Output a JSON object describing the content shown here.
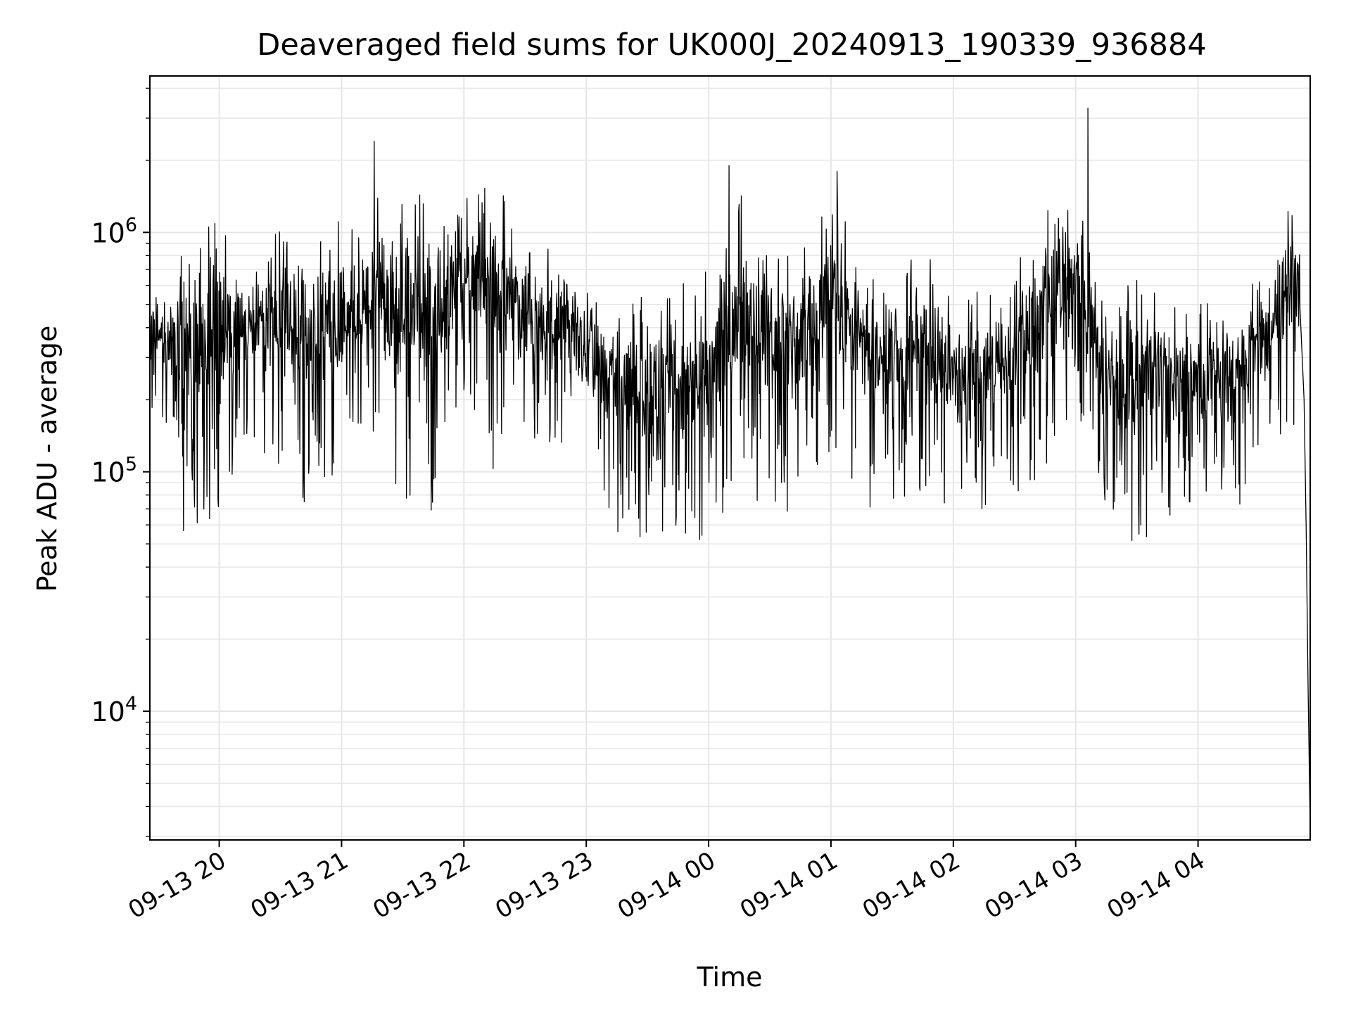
{
  "chart_data": {
    "type": "line",
    "title": "Deaveraged field sums for UK000J_20240913_190339_936884",
    "xlabel": "Time",
    "ylabel": "Peak ADU - average",
    "x_scale": "time",
    "y_scale": "log",
    "xlim": [
      "2024-09-13 19:26",
      "2024-09-14 04:55"
    ],
    "ylim": [
      2900,
      4500000
    ],
    "x_ticks": [
      {
        "time": "2024-09-13 20:00",
        "label": "09-13 20"
      },
      {
        "time": "2024-09-13 21:00",
        "label": "09-13 21"
      },
      {
        "time": "2024-09-13 22:00",
        "label": "09-13 22"
      },
      {
        "time": "2024-09-13 23:00",
        "label": "09-13 23"
      },
      {
        "time": "2024-09-14 00:00",
        "label": "09-14 00"
      },
      {
        "time": "2024-09-14 01:00",
        "label": "09-14 01"
      },
      {
        "time": "2024-09-14 02:00",
        "label": "09-14 02"
      },
      {
        "time": "2024-09-14 03:00",
        "label": "09-14 03"
      },
      {
        "time": "2024-09-14 04:00",
        "label": "09-14 04"
      }
    ],
    "y_ticks": [
      {
        "value": 10000,
        "base": "10",
        "exp": "4"
      },
      {
        "value": 100000,
        "base": "10",
        "exp": "5"
      },
      {
        "value": 1000000,
        "base": "10",
        "exp": "6"
      }
    ],
    "grid": true,
    "line_color": "#000000",
    "grid_color": "#e6e6e6",
    "series_envelope": [
      {
        "time": "2024-09-13 19:30",
        "low": 180000,
        "high": 600000
      },
      {
        "time": "2024-09-13 19:45",
        "low": 45000,
        "high": 1000000
      },
      {
        "time": "2024-09-13 20:00",
        "low": 70000,
        "high": 1150000
      },
      {
        "time": "2024-09-13 20:15",
        "low": 140000,
        "high": 700000
      },
      {
        "time": "2024-09-13 20:30",
        "low": 90000,
        "high": 1100000
      },
      {
        "time": "2024-09-13 20:45",
        "low": 60000,
        "high": 1200000
      },
      {
        "time": "2024-09-13 21:00",
        "low": 110000,
        "high": 1100000
      },
      {
        "time": "2024-09-13 21:15",
        "low": 130000,
        "high": 1400000
      },
      {
        "time": "2024-09-13 21:30",
        "low": 70000,
        "high": 1500000
      },
      {
        "time": "2024-09-13 21:45",
        "low": 60000,
        "high": 1400000
      },
      {
        "time": "2024-09-13 22:00",
        "low": 200000,
        "high": 1500000
      },
      {
        "time": "2024-09-13 22:15",
        "low": 90000,
        "high": 1700000
      },
      {
        "time": "2024-09-13 22:30",
        "low": 120000,
        "high": 1000000
      },
      {
        "time": "2024-09-13 22:45",
        "low": 130000,
        "high": 1000000
      },
      {
        "time": "2024-09-13 23:00",
        "low": 100000,
        "high": 600000
      },
      {
        "time": "2024-09-13 23:15",
        "low": 55000,
        "high": 550000
      },
      {
        "time": "2024-09-13 23:30",
        "low": 50000,
        "high": 600000
      },
      {
        "time": "2024-09-13 23:45",
        "low": 45000,
        "high": 650000
      },
      {
        "time": "2024-09-14 00:00",
        "low": 50000,
        "high": 700000
      },
      {
        "time": "2024-09-14 00:15",
        "low": 80000,
        "high": 1600000
      },
      {
        "time": "2024-09-14 00:30",
        "low": 60000,
        "high": 1100000
      },
      {
        "time": "2024-09-14 00:45",
        "low": 70000,
        "high": 800000
      },
      {
        "time": "2024-09-14 01:00",
        "low": 120000,
        "high": 1500000
      },
      {
        "time": "2024-09-14 01:15",
        "low": 70000,
        "high": 800000
      },
      {
        "time": "2024-09-14 01:30",
        "low": 70000,
        "high": 600000
      },
      {
        "time": "2024-09-14 01:45",
        "low": 80000,
        "high": 900000
      },
      {
        "time": "2024-09-14 02:00",
        "low": 60000,
        "high": 500000
      },
      {
        "time": "2024-09-14 02:15",
        "low": 70000,
        "high": 600000
      },
      {
        "time": "2024-09-14 02:30",
        "low": 80000,
        "high": 700000
      },
      {
        "time": "2024-09-14 02:45",
        "low": 100000,
        "high": 1300000
      },
      {
        "time": "2024-09-14 03:00",
        "low": 200000,
        "high": 1500000
      },
      {
        "time": "2024-09-14 03:15",
        "low": 60000,
        "high": 500000
      },
      {
        "time": "2024-09-14 03:30",
        "low": 50000,
        "high": 650000
      },
      {
        "time": "2024-09-14 03:45",
        "low": 50000,
        "high": 550000
      },
      {
        "time": "2024-09-14 04:00",
        "low": 60000,
        "high": 500000
      },
      {
        "time": "2024-09-14 04:15",
        "low": 60000,
        "high": 550000
      },
      {
        "time": "2024-09-14 04:30",
        "low": 100000,
        "high": 700000
      },
      {
        "time": "2024-09-14 04:45",
        "low": 150000,
        "high": 1300000
      }
    ],
    "notable_points": [
      {
        "time": "2024-09-13 21:16",
        "value": 2400000
      },
      {
        "time": "2024-09-14 00:10",
        "value": 1900000
      },
      {
        "time": "2024-09-14 01:03",
        "value": 1800000
      },
      {
        "time": "2024-09-14 03:06",
        "value": 3300000
      },
      {
        "time": "2024-09-14 04:54",
        "value": 12000
      }
    ]
  }
}
